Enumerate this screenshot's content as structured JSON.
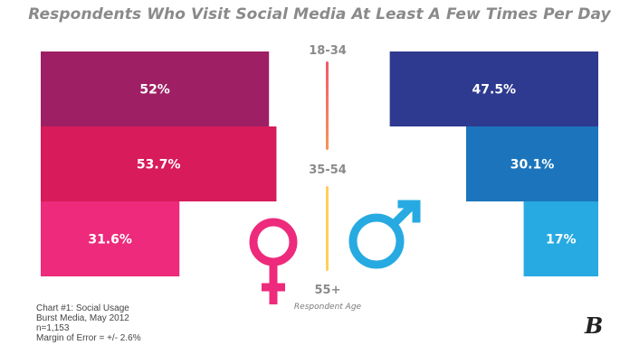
{
  "chart_data": {
    "type": "bar",
    "title": "Respondents Who Visit Social Media At Least A Few Times Per Day",
    "xlabel": "Respondent Age",
    "ylabel": "",
    "categories": [
      "18-34",
      "35-54",
      "55+"
    ],
    "series": [
      {
        "name": "Female",
        "values": [
          52,
          53.7,
          31.6
        ],
        "labels": [
          "52%",
          "53.7%",
          "31.6%"
        ],
        "colors": [
          "#9e1f63",
          "#d81b5a",
          "#ed2a7b"
        ]
      },
      {
        "name": "Male",
        "values": [
          47.5,
          30.1,
          17
        ],
        "labels": [
          "47.5%",
          "30.1%",
          "17%"
        ],
        "colors": [
          "#2e3a8f",
          "#1c75bc",
          "#27aae1"
        ]
      }
    ],
    "xlim": [
      0,
      60
    ],
    "grid": false,
    "legend": "gender symbols at center-bottom (female left, male right)"
  },
  "symbols": {
    "female": "female-symbol",
    "male": "male-symbol"
  },
  "colors": {
    "female_symbol": "#ed2a7b",
    "male_symbol": "#27aae1",
    "title": "#8a8a8a"
  },
  "notes": [
    "Chart #1: Social Usage",
    "Burst Media,  May 2012",
    "n=1,153",
    "Margin of Error = +/- 2.6%"
  ],
  "logo": "B"
}
